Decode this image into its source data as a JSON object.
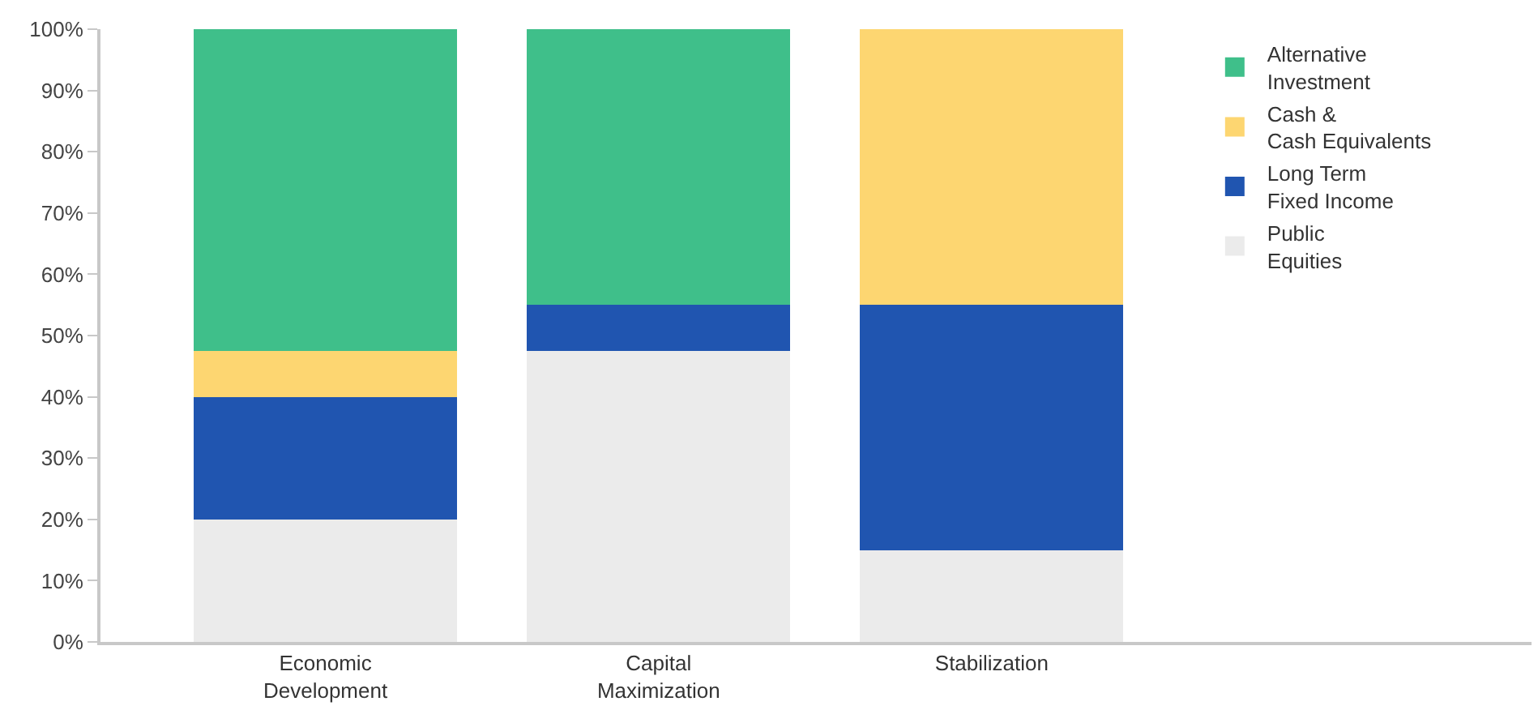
{
  "chart_data": {
    "type": "bar",
    "stacked": true,
    "categories": [
      "Economic\nDevelopment",
      "Capital\nMaximization",
      "Stabilization"
    ],
    "series": [
      {
        "name": "Public\nEquities",
        "color": "#ebebeb",
        "values": [
          20,
          47.5,
          15
        ]
      },
      {
        "name": "Long Term\nFixed Income",
        "color": "#2055b0",
        "values": [
          20,
          7.5,
          40
        ]
      },
      {
        "name": "Cash &\nCash Equivalents",
        "color": "#fdd671",
        "values": [
          7.5,
          null,
          45
        ]
      },
      {
        "name": "Alternative\nInvestment",
        "color": "#3fbf8a",
        "values": [
          52.5,
          45,
          null
        ]
      }
    ],
    "ylim": [
      0,
      100
    ],
    "yticks": [
      {
        "value": 0,
        "label": "0%"
      },
      {
        "value": 10,
        "label": "10%"
      },
      {
        "value": 20,
        "label": "20%"
      },
      {
        "value": 30,
        "label": "30%"
      },
      {
        "value": 40,
        "label": "40%"
      },
      {
        "value": 50,
        "label": "50%"
      },
      {
        "value": 60,
        "label": "60%"
      },
      {
        "value": 70,
        "label": "70%"
      },
      {
        "value": 80,
        "label": "80%"
      },
      {
        "value": 90,
        "label": "90%"
      },
      {
        "value": 100,
        "label": "100%"
      }
    ],
    "legend": "top right"
  }
}
